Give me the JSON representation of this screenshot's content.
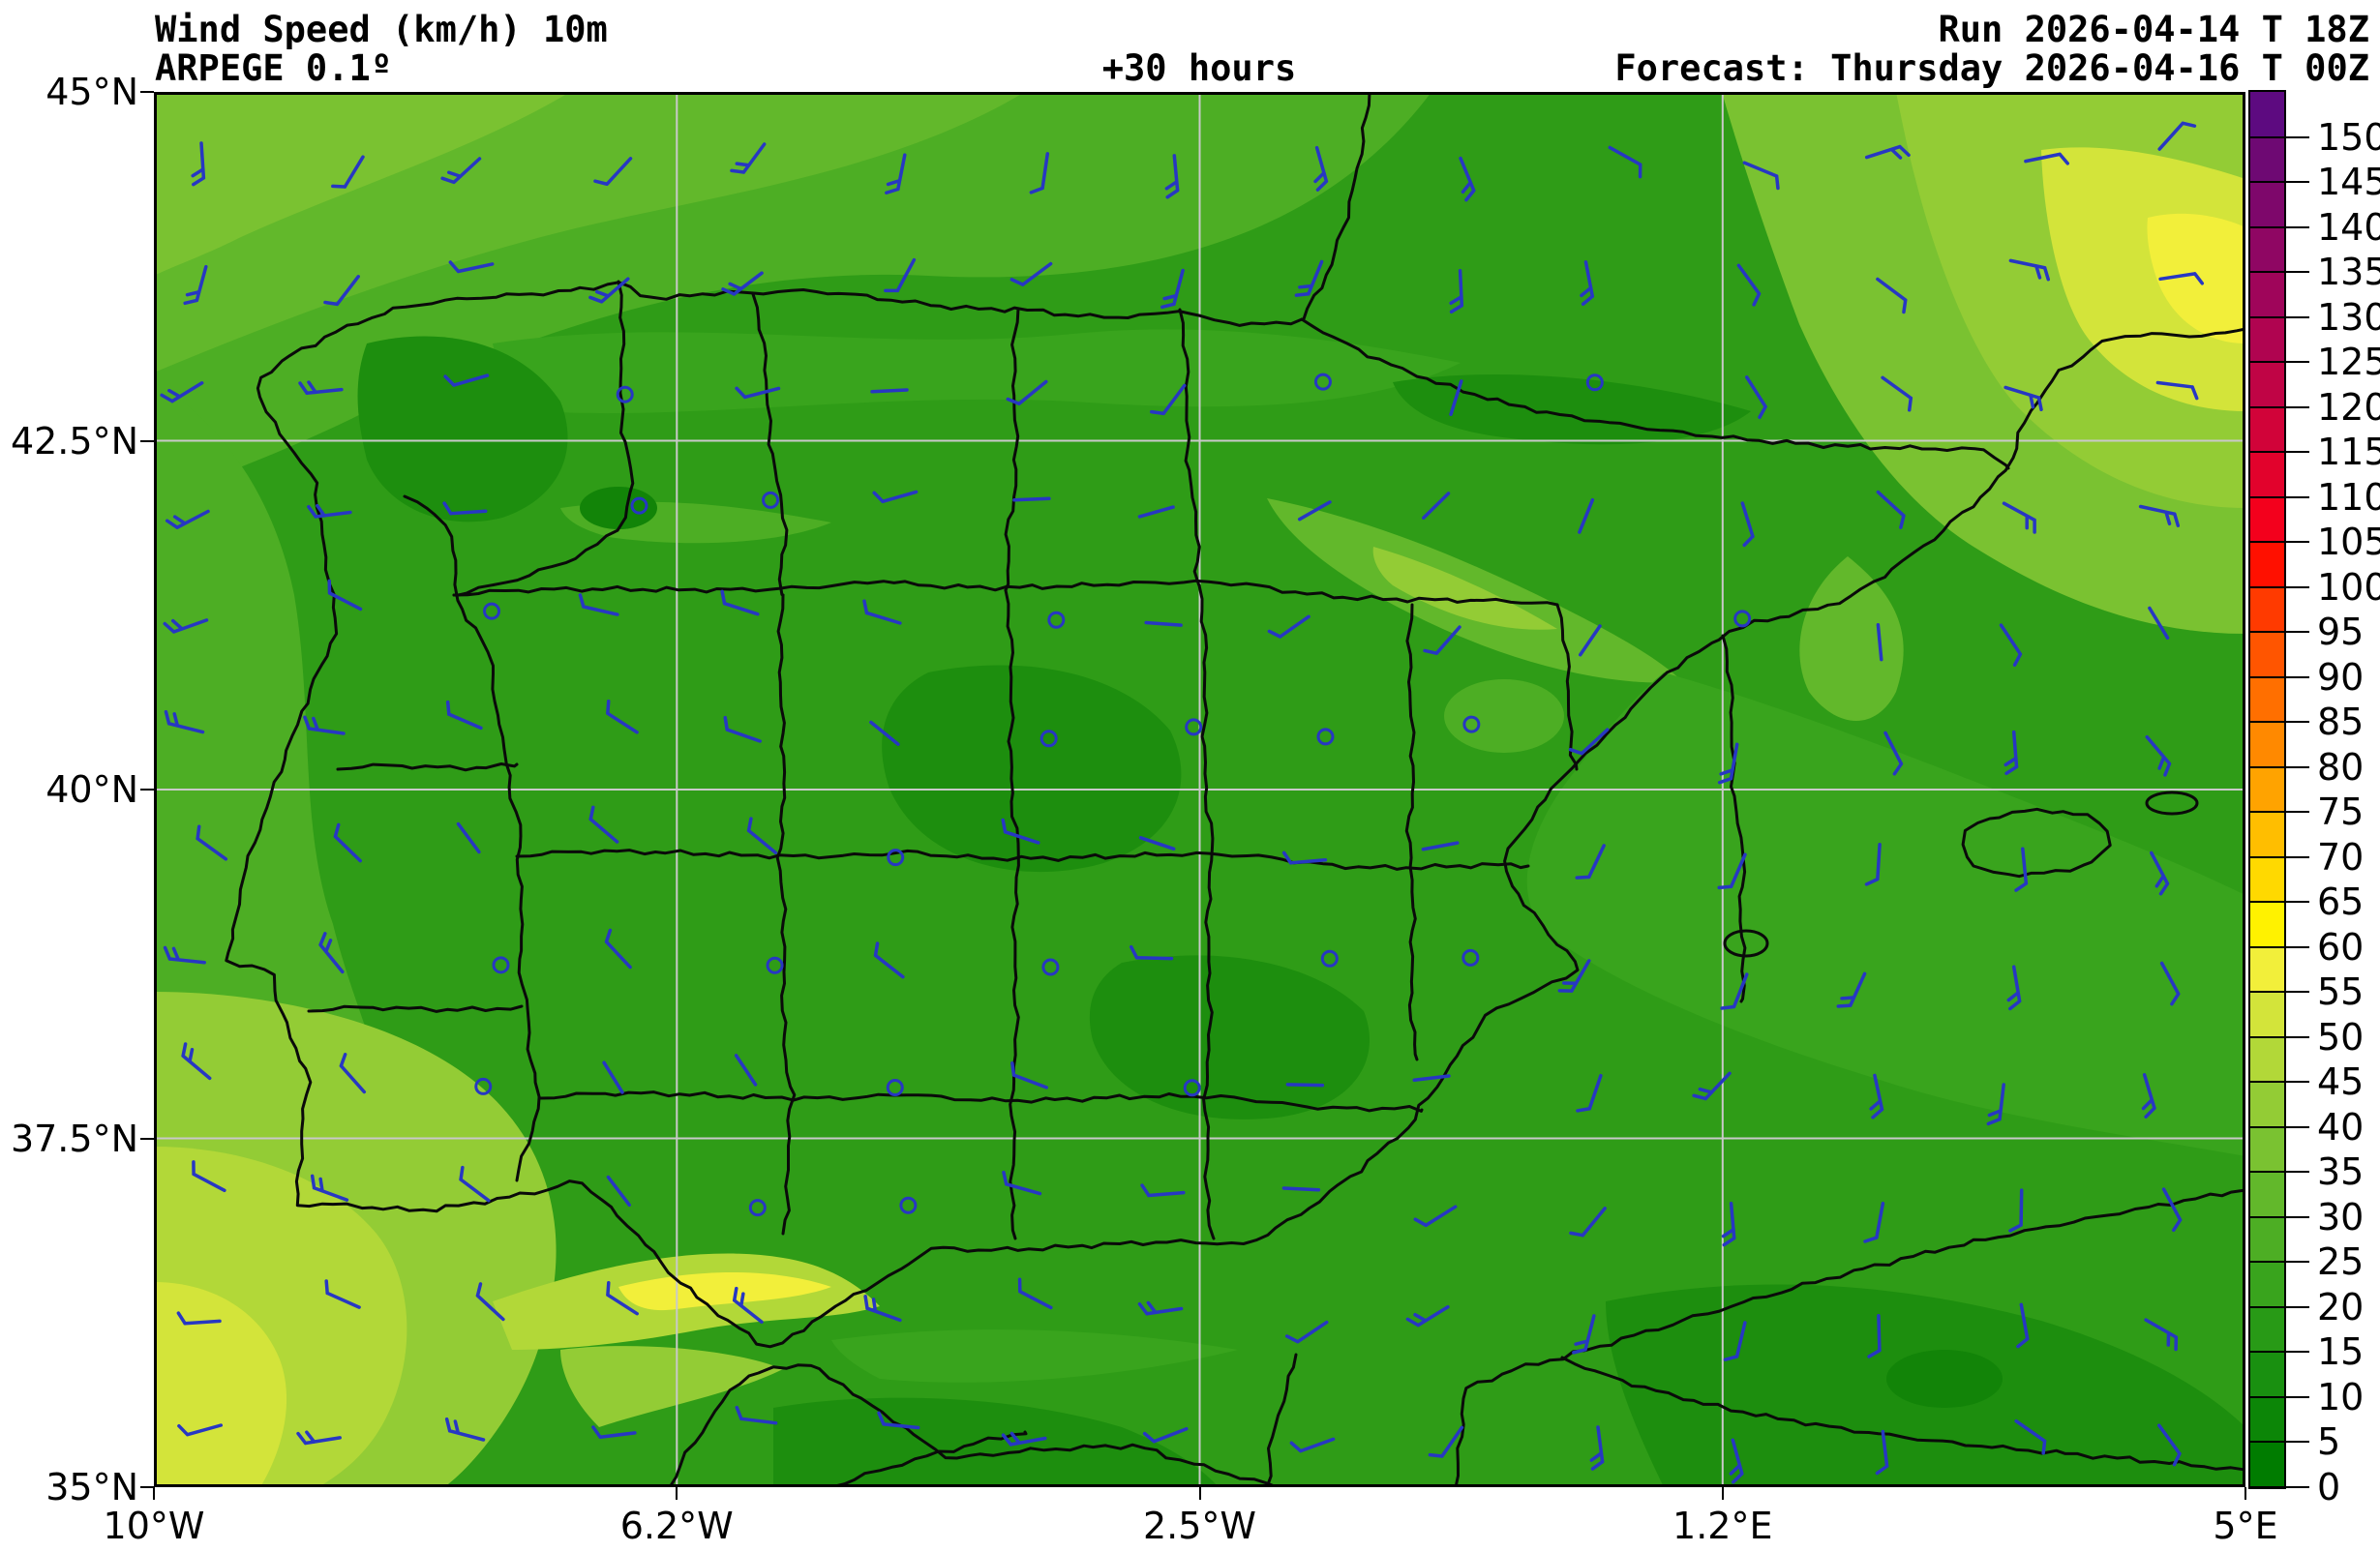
{
  "header": {
    "title": "Wind Speed (km/h) 10m",
    "model": "ARPEGE 0.1º",
    "lead_time": "+30 hours",
    "run": "Run 2026-04-14 T 18Z",
    "forecast": "Forecast: Thursday 2026-04-16 T 00Z"
  },
  "chart_data": {
    "type": "heatmap",
    "title": "Wind Speed (km/h) 10m",
    "model": "ARPEGE 0.1º",
    "lead_time_hours": 30,
    "run": "2026-04-14 T 18Z",
    "valid": "Thursday 2026-04-16 T 00Z",
    "variable": "Wind speed at 10 m",
    "unit": "km/h",
    "region": "Iberian Peninsula and surroundings",
    "x_axis": {
      "labels": [
        "10°W",
        "6.2°W",
        "2.5°W",
        "1.2°E",
        "5°E"
      ],
      "positions_pct": [
        0,
        25,
        50,
        75,
        100
      ]
    },
    "y_axis": {
      "labels": [
        "45°N",
        "42.5°N",
        "40°N",
        "37.5°N",
        "35°N"
      ],
      "positions_pct": [
        0,
        25,
        50,
        75,
        100
      ]
    },
    "grid": "on",
    "colorbar": {
      "unit": "km/h",
      "ticks": [
        0,
        5,
        10,
        15,
        20,
        25,
        30,
        35,
        40,
        45,
        50,
        55,
        60,
        65,
        70,
        75,
        80,
        85,
        90,
        95,
        100,
        105,
        110,
        115,
        120,
        125,
        130,
        135,
        140,
        145,
        150
      ],
      "segment_colors_low_to_high": [
        "#007c00",
        "#0c8607",
        "#199010",
        "#289a16",
        "#39a41d",
        "#4dae24",
        "#62b82b",
        "#7ac231",
        "#93cc35",
        "#b2d838",
        "#d3e43a",
        "#f2ef3a",
        "#fff200",
        "#ffd900",
        "#ffbe00",
        "#ffa300",
        "#ff8900",
        "#ff6f00",
        "#ff5500",
        "#ff3a00",
        "#ff1000",
        "#f3001c",
        "#e2022c",
        "#d10339",
        "#c00445",
        "#b00450",
        "#9f055a",
        "#8f0663",
        "#7e076b",
        "#6e0973",
        "#5d0a80"
      ],
      "over_max_color": "#5d0a80",
      "position": "right"
    },
    "wind_barbs": {
      "color": "#2737c3",
      "calm_symbol": "small open circle",
      "grid": {
        "cols": 15,
        "rows": 12
      },
      "note": "Blue wind barbs on ~1° grid; open circles mark near-calm points inland"
    },
    "estimated_regions_kmh": [
      {
        "area": "Atlantic, NW corner off Galicia",
        "value": "25-35"
      },
      {
        "area": "Atlantic, SW off Portugal coast",
        "value": "30-45"
      },
      {
        "area": "Gulf of Cádiz / Strait of Gibraltar jet",
        "value": "40-55"
      },
      {
        "area": "NE Mediterranean / Gulf of Lion corner",
        "value": "35-55"
      },
      {
        "area": "Catalan coastal band",
        "value": "25-40"
      },
      {
        "area": "Ebro valley band",
        "value": "20-35"
      },
      {
        "area": "Iberian interior",
        "value": "5-20"
      },
      {
        "area": "Balearic Sea",
        "value": "10-25"
      },
      {
        "area": "North Africa interior",
        "value": "5-20"
      }
    ]
  },
  "colors": {
    "background": "#ffffff",
    "map_base_green": "#2f9c17",
    "grid_line": "#c9c9c9",
    "boundary_line": "#0a0a0a",
    "barb_blue": "#2737c3",
    "text": "#000000"
  }
}
